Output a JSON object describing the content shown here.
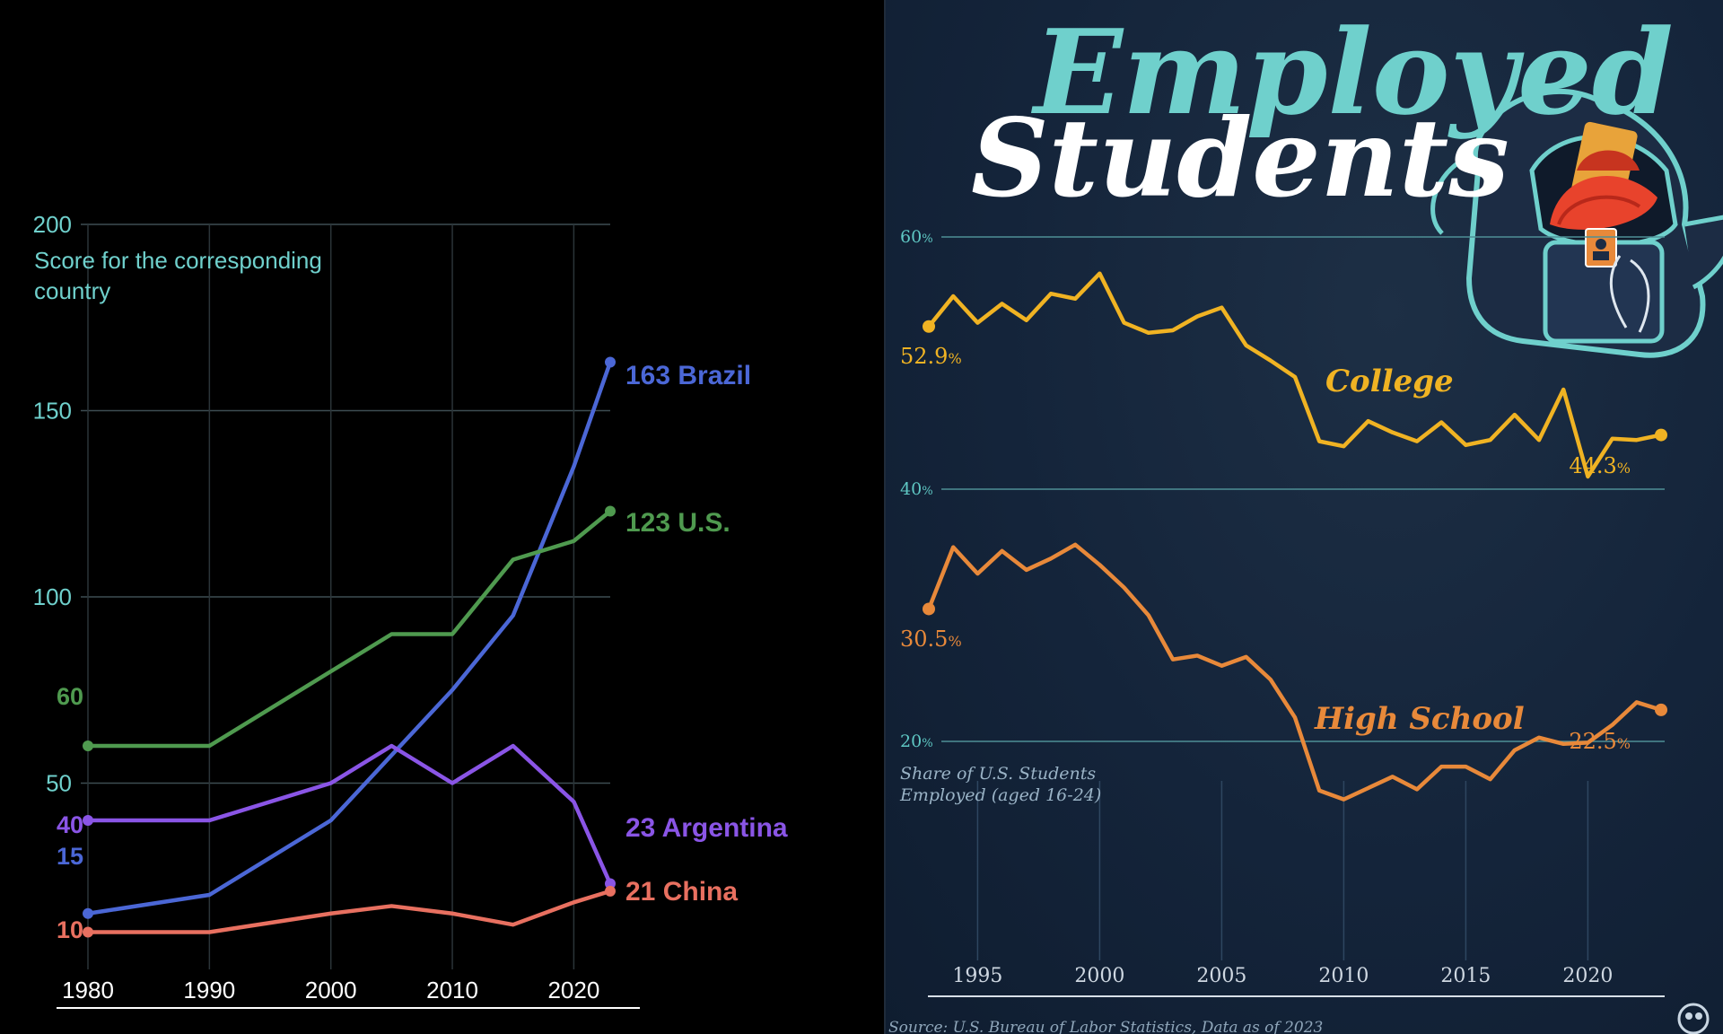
{
  "colors": {
    "brazil": "#4b67d6",
    "us": "#4f9a4f",
    "argentina": "#8a55e6",
    "china": "#e87060",
    "college": "#f0b323",
    "high_school": "#e8893a",
    "teal": "#6fd0cc"
  },
  "chart_data": [
    {
      "type": "line",
      "title": "",
      "ylabel": "Score for the corresponding country",
      "xlabel": "",
      "ylim": [
        0,
        200
      ],
      "xlim": [
        1980,
        2023
      ],
      "y_ticks": [
        "200",
        "150",
        "100",
        "50"
      ],
      "x_ticks": [
        "1980",
        "1990",
        "2000",
        "2010",
        "2020"
      ],
      "grid": "horizontal",
      "series": [
        {
          "name": "Brazil",
          "start_label": "15",
          "end_label": "163 Brazil",
          "x": [
            1980,
            1990,
            2000,
            2010,
            2015,
            2020,
            2023
          ],
          "values": [
            15,
            20,
            40,
            75,
            95,
            135,
            163
          ]
        },
        {
          "name": "U.S.",
          "start_label": "60",
          "end_label": "123 U.S.",
          "x": [
            1980,
            1990,
            2000,
            2005,
            2010,
            2015,
            2020,
            2023
          ],
          "values": [
            60,
            60,
            80,
            90,
            90,
            110,
            115,
            123
          ]
        },
        {
          "name": "Argentina",
          "start_label": "40",
          "end_label": "23 Argentina",
          "x": [
            1980,
            1990,
            2000,
            2005,
            2010,
            2015,
            2020,
            2023
          ],
          "values": [
            40,
            40,
            50,
            60,
            50,
            60,
            45,
            23
          ]
        },
        {
          "name": "China",
          "start_label": "10",
          "end_label": "21 China",
          "x": [
            1980,
            1990,
            2000,
            2005,
            2010,
            2015,
            2020,
            2023
          ],
          "values": [
            10,
            10,
            15,
            17,
            15,
            12,
            18,
            21
          ]
        }
      ]
    },
    {
      "type": "line",
      "title": "Employed Students",
      "title_line1": "Employed",
      "title_line2": "Students",
      "ylabel": "Share of U.S. Students Employed (aged 16-24)",
      "ylabel_line1": "Share of U.S. Students",
      "ylabel_line2": "Employed (aged 16-24)",
      "ylim": [
        10,
        62
      ],
      "xlim": [
        1993,
        2023
      ],
      "y_ticks": [
        {
          "value": 60,
          "label": "60",
          "unit": "%"
        },
        {
          "value": 40,
          "label": "40",
          "unit": "%"
        },
        {
          "value": 20,
          "label": "20",
          "unit": "%"
        }
      ],
      "x_ticks": [
        "1995",
        "2000",
        "2005",
        "2010",
        "2015",
        "2020"
      ],
      "grid": "horizontal",
      "source": "Source: U.S. Bureau of Labor Statistics, Data as of 2023",
      "series": [
        {
          "name": "College",
          "start_label": "52.9",
          "end_label": "44.3",
          "unit": "%",
          "x": [
            1993,
            1994,
            1995,
            1996,
            1997,
            1998,
            1999,
            2000,
            2001,
            2002,
            2003,
            2004,
            2005,
            2006,
            2007,
            2008,
            2009,
            2010,
            2011,
            2012,
            2013,
            2014,
            2015,
            2016,
            2017,
            2018,
            2019,
            2020,
            2021,
            2022,
            2023
          ],
          "values": [
            52.9,
            55.3,
            53.2,
            54.7,
            53.4,
            55.5,
            55.1,
            57.1,
            53.2,
            52.4,
            52.6,
            53.7,
            54.4,
            51.4,
            50.2,
            48.9,
            43.8,
            43.4,
            45.4,
            44.5,
            43.8,
            45.3,
            43.5,
            43.9,
            45.9,
            43.9,
            47.9,
            41.0,
            44.0,
            43.9,
            44.3
          ]
        },
        {
          "name": "High School",
          "start_label": "30.5",
          "end_label": "22.5",
          "unit": "%",
          "x": [
            1993,
            1994,
            1995,
            1996,
            1997,
            1998,
            1999,
            2000,
            2001,
            2002,
            2003,
            2004,
            2005,
            2006,
            2007,
            2008,
            2009,
            2010,
            2011,
            2012,
            2013,
            2014,
            2015,
            2016,
            2017,
            2018,
            2019,
            2020,
            2021,
            2022,
            2023
          ],
          "values": [
            30.5,
            35.4,
            33.3,
            35.1,
            33.6,
            34.5,
            35.6,
            34.0,
            32.2,
            30.0,
            26.5,
            26.8,
            26.0,
            26.7,
            24.9,
            21.9,
            16.1,
            15.4,
            16.3,
            17.2,
            16.2,
            18.0,
            18.0,
            17.0,
            19.3,
            20.3,
            19.8,
            19.9,
            21.3,
            23.1,
            22.5
          ]
        }
      ]
    }
  ]
}
